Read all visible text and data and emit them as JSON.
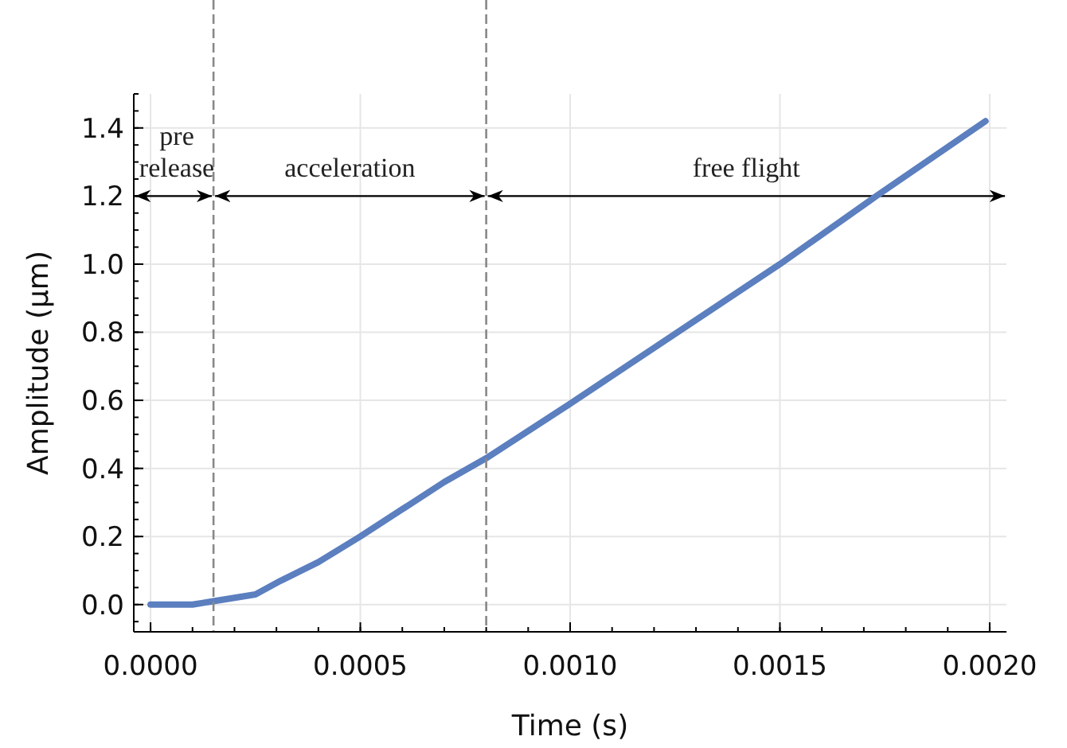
{
  "chart_data": {
    "type": "line",
    "xlabel": "Time (s)",
    "ylabel": "Amplitude (μm)",
    "xlim": [
      -4e-05,
      0.00204
    ],
    "xticks": [
      {
        "value": 0,
        "label": "0.0000"
      },
      {
        "value": 0.0005,
        "label": "0.0005"
      },
      {
        "value": 0.001,
        "label": "0.0010"
      },
      {
        "value": 0.0015,
        "label": "0.0015"
      },
      {
        "value": 0.002,
        "label": "0.0020"
      }
    ],
    "ylim": [
      -0.08,
      1.5
    ],
    "yticks": [
      {
        "value": 0,
        "label": "0.0"
      },
      {
        "value": 0.2,
        "label": "0.2"
      },
      {
        "value": 0.4,
        "label": "0.4"
      },
      {
        "value": 0.6,
        "label": "0.6"
      },
      {
        "value": 0.8,
        "label": "0.8"
      },
      {
        "value": 1.0,
        "label": "1.0"
      },
      {
        "value": 1.2,
        "label": "1.2"
      },
      {
        "value": 1.4,
        "label": "1.4"
      }
    ],
    "grid": true,
    "marker": "none",
    "line_style": "solid",
    "series": [
      {
        "color": "#5b7fbf",
        "x": [
          0,
          0.0001,
          0.00015,
          0.00025,
          0.00031,
          0.0004,
          0.0005,
          0.0006,
          0.0007,
          0.0008,
          0.001,
          0.0015,
          0.00173,
          0.00199
        ],
        "values": [
          0,
          0,
          0.01,
          0.03,
          0.07,
          0.125,
          0.2,
          0.28,
          0.36,
          0.43,
          0.59,
          1.0,
          1.2,
          1.42
        ]
      }
    ],
    "ref_lines": [
      {
        "axis": "x",
        "value": 0.00015,
        "color": "#888888",
        "line_style": "dashed"
      },
      {
        "axis": "x",
        "value": 0.0008,
        "color": "#888888",
        "line_style": "dashed"
      }
    ],
    "annotations": [
      "pre release",
      "acceleration",
      "free flight"
    ]
  }
}
